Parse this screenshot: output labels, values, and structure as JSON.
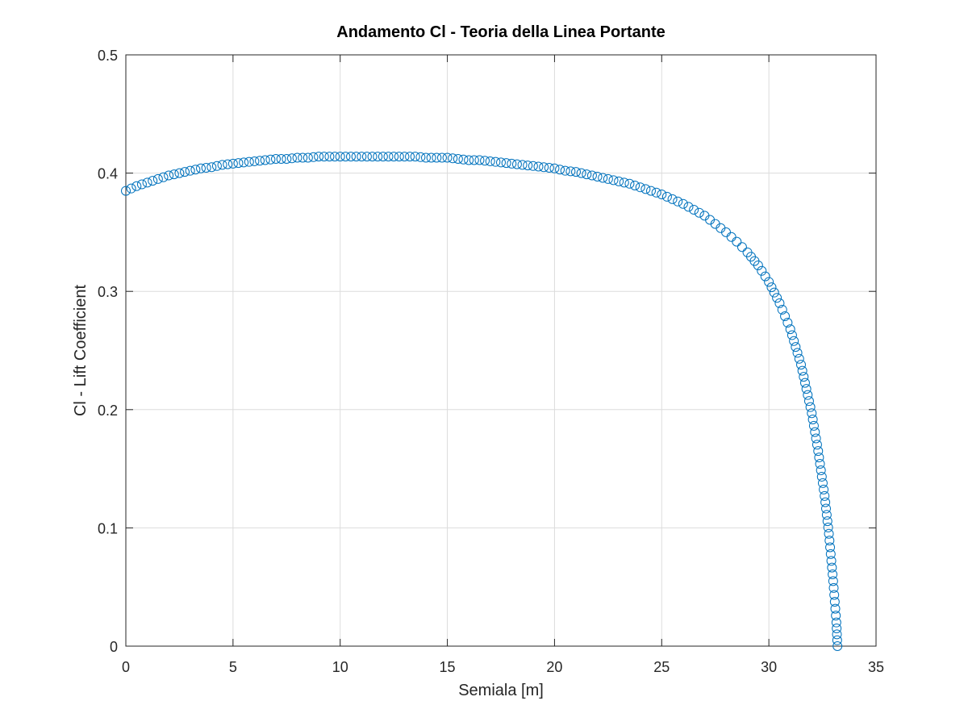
{
  "chart_data": {
    "type": "scatter",
    "title": "Andamento Cl - Teoria della Linea Portante",
    "xlabel": "Semiala [m]",
    "ylabel": "Cl - Lift Coefficient",
    "xlim": [
      0,
      35
    ],
    "ylim": [
      0,
      0.5
    ],
    "xticks": [
      "0",
      "5",
      "10",
      "15",
      "20",
      "25",
      "30",
      "35"
    ],
    "yticks": [
      "0",
      "0.1",
      "0.2",
      "0.3",
      "0.4",
      "0.5"
    ],
    "grid": true,
    "marker": "open-circle",
    "color": "#0072BD",
    "series": [
      {
        "x": [
          0,
          0.5,
          1,
          1.5,
          2,
          2.5,
          3,
          3.5,
          4,
          4.5,
          5,
          5.5,
          6,
          6.5,
          7,
          7.5,
          8,
          8.5,
          9,
          9.5,
          10,
          10.5,
          11,
          11.5,
          12,
          12.5,
          13,
          13.5,
          14,
          14.5,
          15,
          15.5,
          16,
          16.5,
          17,
          17.5,
          18,
          18.5,
          19,
          19.5,
          20,
          20.5,
          21,
          21.5,
          22,
          22.5,
          23,
          23.5,
          24,
          24.5,
          25,
          25.5,
          26,
          26.5,
          27,
          27.5,
          28,
          28.5,
          29,
          29.5,
          30,
          30.5,
          31,
          31.5,
          32,
          32.3,
          32.6,
          32.8,
          33.0,
          33.15,
          33.2
        ],
        "y": [
          0.385,
          0.389,
          0.392,
          0.395,
          0.398,
          0.4,
          0.402,
          0.404,
          0.405,
          0.407,
          0.408,
          0.409,
          0.41,
          0.411,
          0.412,
          0.412,
          0.413,
          0.413,
          0.414,
          0.414,
          0.414,
          0.414,
          0.414,
          0.414,
          0.414,
          0.414,
          0.414,
          0.414,
          0.413,
          0.413,
          0.413,
          0.412,
          0.411,
          0.411,
          0.41,
          0.409,
          0.408,
          0.407,
          0.406,
          0.405,
          0.404,
          0.402,
          0.401,
          0.399,
          0.397,
          0.395,
          0.393,
          0.391,
          0.388,
          0.385,
          0.382,
          0.378,
          0.374,
          0.369,
          0.364,
          0.357,
          0.35,
          0.342,
          0.333,
          0.322,
          0.308,
          0.29,
          0.268,
          0.238,
          0.197,
          0.165,
          0.127,
          0.095,
          0.055,
          0.02,
          0.0
        ]
      }
    ]
  }
}
